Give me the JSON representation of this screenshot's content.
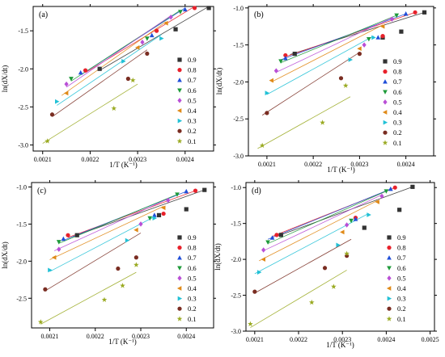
{
  "figure": {
    "title": ""
  },
  "chart_data": [
    {
      "type": "scatter",
      "panel_label": "(a)",
      "xlabel": "1/T (K⁻¹)",
      "ylabel": "ln(dX/dt)",
      "xlim": [
        0.00208,
        0.00246
      ],
      "ylim": [
        -3.08,
        -1.18
      ],
      "xticks": [
        "0.0021",
        "0.0022",
        "0.0023",
        "0.0024"
      ],
      "xtick_values": [
        0.0021,
        0.0022,
        0.0023,
        0.0024
      ],
      "yticks": [
        "-3.0",
        "-2.5",
        "-2.0",
        "-1.5"
      ],
      "ytick_values": [
        -3.0,
        -2.5,
        -2.0,
        -1.5
      ],
      "legend": {
        "position": "right"
      },
      "series": [
        {
          "name": "0.9",
          "color": "#333333",
          "marker": "square",
          "x": [
            0.00222,
            0.00238,
            0.00245
          ],
          "y": [
            -2.0,
            -1.48,
            -1.2
          ],
          "fit": {
            "x": [
              0.00222,
              0.00245
            ],
            "y": [
              -2.02,
              -1.18
            ]
          }
        },
        {
          "name": "0.8",
          "color": "#e8212b",
          "marker": "circle",
          "x": [
            0.00219,
            0.00234,
            0.00242
          ],
          "y": [
            -2.02,
            -1.5,
            -1.2
          ],
          "fit": {
            "x": [
              0.00219,
              0.00242
            ],
            "y": [
              -2.05,
              -1.18
            ]
          }
        },
        {
          "name": "0.7",
          "color": "#1f4ed8",
          "marker": "triangle-up",
          "x": [
            0.00218,
            0.00233,
            0.0024
          ],
          "y": [
            -2.05,
            -1.56,
            -1.22
          ],
          "fit": {
            "x": [
              0.00218,
              0.0024
            ],
            "y": [
              -2.08,
              -1.2
            ]
          }
        },
        {
          "name": "0.6",
          "color": "#1e9a3a",
          "marker": "triangle-down",
          "x": [
            0.00216,
            0.00232,
            0.00239
          ],
          "y": [
            -2.13,
            -1.6,
            -1.25
          ],
          "fit": {
            "x": [
              0.00216,
              0.00239
            ],
            "y": [
              -2.16,
              -1.23
            ]
          }
        },
        {
          "name": "0.5",
          "color": "#b94fd6",
          "marker": "diamond",
          "x": [
            0.00215,
            0.00231,
            0.00237
          ],
          "y": [
            -2.2,
            -1.65,
            -1.32
          ],
          "fit": {
            "x": [
              0.00215,
              0.00237
            ],
            "y": [
              -2.24,
              -1.3
            ]
          }
        },
        {
          "name": "0.4",
          "color": "#e08a18",
          "marker": "triangle-left",
          "x": [
            0.00215,
            0.0023,
            0.00236
          ],
          "y": [
            -2.32,
            -1.72,
            -1.4
          ],
          "fit": {
            "x": [
              0.00214,
              0.00236
            ],
            "y": [
              -2.35,
              -1.38
            ]
          }
        },
        {
          "name": "0.3",
          "color": "#22c1d6",
          "marker": "triangle-right",
          "x": [
            0.00213,
            0.00227,
            0.00235
          ],
          "y": [
            -2.43,
            -1.9,
            -1.6
          ],
          "fit": {
            "x": [
              0.00213,
              0.00235
            ],
            "y": [
              -2.48,
              -1.55
            ]
          }
        },
        {
          "name": "0.2",
          "color": "#7a2d22",
          "marker": "circle",
          "x": [
            0.00212,
            0.00228,
            0.00232
          ],
          "y": [
            -2.6,
            -2.13,
            -1.8
          ],
          "fit": {
            "x": [
              0.00212,
              0.00232
            ],
            "y": [
              -2.63,
              -1.75
            ]
          }
        },
        {
          "name": "0.1",
          "color": "#9aaa22",
          "marker": "star",
          "x": [
            0.00211,
            0.00225,
            0.00229
          ],
          "y": [
            -2.95,
            -2.52,
            -2.15
          ],
          "fit": {
            "x": [
              0.0021,
              0.0023
            ],
            "y": [
              -2.98,
              -2.2
            ]
          }
        }
      ]
    },
    {
      "type": "scatter",
      "panel_label": "(b)",
      "xlabel": "1/T (K⁻¹)",
      "ylabel": "ln(dX/dt)",
      "xlim": [
        0.00206,
        0.00246
      ],
      "ylim": [
        -3.0,
        -0.98
      ],
      "xticks": [
        "0.0021",
        "0.0022",
        "0.0023",
        "0.0024"
      ],
      "xtick_values": [
        0.0021,
        0.0022,
        0.0023,
        0.0024
      ],
      "yticks": [
        "-3.0",
        "-2.5",
        "-2.0",
        "-1.5",
        "-1.0"
      ],
      "ytick_values": [
        -3.0,
        -2.5,
        -2.0,
        -1.5,
        -1.0
      ],
      "legend": {
        "position": "right"
      },
      "series": [
        {
          "name": "0.9",
          "color": "#333333",
          "marker": "square",
          "x": [
            0.00216,
            0.00235,
            0.00239,
            0.00244
          ],
          "y": [
            -1.62,
            -1.4,
            -1.32,
            -1.06
          ],
          "fit": {
            "x": [
              0.00215,
              0.00244
            ],
            "y": [
              -1.63,
              -1.06
            ]
          }
        },
        {
          "name": "0.8",
          "color": "#e8212b",
          "marker": "circle",
          "x": [
            0.00214,
            0.00235,
            0.00242
          ],
          "y": [
            -1.64,
            -1.38,
            -1.06
          ],
          "fit": {
            "x": [
              0.00214,
              0.00242
            ],
            "y": [
              -1.66,
              -1.06
            ]
          }
        },
        {
          "name": "0.7",
          "color": "#1f4ed8",
          "marker": "triangle-up",
          "x": [
            0.00214,
            0.00234,
            0.0024
          ],
          "y": [
            -1.68,
            -1.4,
            -1.08
          ],
          "fit": {
            "x": [
              0.00213,
              0.0024
            ],
            "y": [
              -1.7,
              -1.08
            ]
          }
        },
        {
          "name": "0.6",
          "color": "#1e9a3a",
          "marker": "triangle-down",
          "x": [
            0.00213,
            0.00232,
            0.00238
          ],
          "y": [
            -1.72,
            -1.42,
            -1.1
          ],
          "fit": {
            "x": [
              0.00213,
              0.00238
            ],
            "y": [
              -1.74,
              -1.1
            ]
          }
        },
        {
          "name": "0.5",
          "color": "#b94fd6",
          "marker": "diamond",
          "x": [
            0.00212,
            0.00231,
            0.00237
          ],
          "y": [
            -1.85,
            -1.5,
            -1.15
          ],
          "fit": {
            "x": [
              0.00212,
              0.00237
            ],
            "y": [
              -1.87,
              -1.13
            ]
          }
        },
        {
          "name": "0.4",
          "color": "#e08a18",
          "marker": "triangle-left",
          "x": [
            0.00211,
            0.0023,
            0.00235
          ],
          "y": [
            -1.98,
            -1.55,
            -1.25
          ],
          "fit": {
            "x": [
              0.00211,
              0.00235
            ],
            "y": [
              -2.0,
              -1.23
            ]
          }
        },
        {
          "name": "0.3",
          "color": "#22c1d6",
          "marker": "triangle-right",
          "x": [
            0.0021,
            0.00228,
            0.00233
          ],
          "y": [
            -2.15,
            -1.7,
            -1.4
          ],
          "fit": {
            "x": [
              0.0021,
              0.00233
            ],
            "y": [
              -2.17,
              -1.38
            ]
          }
        },
        {
          "name": "0.2",
          "color": "#7a2d22",
          "marker": "circle",
          "x": [
            0.0021,
            0.00226,
            0.0023
          ],
          "y": [
            -2.42,
            -1.95,
            -1.62
          ],
          "fit": {
            "x": [
              0.00209,
              0.0023
            ],
            "y": [
              -2.45,
              -1.6
            ]
          }
        },
        {
          "name": "0.1",
          "color": "#9aaa22",
          "marker": "star",
          "x": [
            0.00209,
            0.00222,
            0.00227
          ],
          "y": [
            -2.86,
            -2.55,
            -2.05
          ],
          "fit": {
            "x": [
              0.00208,
              0.00228
            ],
            "y": [
              -2.9,
              -2.2
            ]
          }
        }
      ]
    },
    {
      "type": "scatter",
      "panel_label": "(c)",
      "xlabel": "1/T (K⁻¹)",
      "ylabel": "ln(dX/dt)",
      "xlim": [
        0.00206,
        0.00246
      ],
      "ylim": [
        -2.9,
        -0.94
      ],
      "xticks": [
        "0.0021",
        "0.0022",
        "0.0023",
        "0.0024"
      ],
      "xtick_values": [
        0.0021,
        0.0022,
        0.0023,
        0.0024
      ],
      "yticks": [
        "-2.5",
        "-2.0",
        "-1.5",
        "-1.0"
      ],
      "ytick_values": [
        -2.5,
        -2.0,
        -1.5,
        -1.0
      ],
      "legend": {
        "position": "right"
      },
      "series": [
        {
          "name": "0.9",
          "color": "#333333",
          "marker": "square",
          "x": [
            0.00216,
            0.00234,
            0.0024,
            0.00244
          ],
          "y": [
            -1.65,
            -1.38,
            -1.3,
            -1.04
          ],
          "fit": {
            "x": [
              0.00215,
              0.00244
            ],
            "y": [
              -1.67,
              -1.04
            ]
          }
        },
        {
          "name": "0.8",
          "color": "#e8212b",
          "marker": "circle",
          "x": [
            0.00214,
            0.00235,
            0.00242
          ],
          "y": [
            -1.65,
            -1.36,
            -1.05
          ],
          "fit": {
            "x": [
              0.00214,
              0.00242
            ],
            "y": [
              -1.68,
              -1.05
            ]
          }
        },
        {
          "name": "0.7",
          "color": "#1f4ed8",
          "marker": "triangle-up",
          "x": [
            0.00213,
            0.00233,
            0.0024
          ],
          "y": [
            -1.7,
            -1.38,
            -1.06
          ],
          "fit": {
            "x": [
              0.00213,
              0.0024
            ],
            "y": [
              -1.72,
              -1.06
            ]
          }
        },
        {
          "name": "0.6",
          "color": "#1e9a3a",
          "marker": "triangle-down",
          "x": [
            0.00212,
            0.00232,
            0.00238
          ],
          "y": [
            -1.74,
            -1.42,
            -1.1
          ],
          "fit": {
            "x": [
              0.00212,
              0.00238
            ],
            "y": [
              -1.76,
              -1.1
            ]
          }
        },
        {
          "name": "0.5",
          "color": "#b94fd6",
          "marker": "diamond",
          "x": [
            0.00212,
            0.0023,
            0.00236
          ],
          "y": [
            -1.84,
            -1.5,
            -1.18
          ],
          "fit": {
            "x": [
              0.00211,
              0.00236
            ],
            "y": [
              -1.86,
              -1.16
            ]
          }
        },
        {
          "name": "0.4",
          "color": "#e08a18",
          "marker": "triangle-left",
          "x": [
            0.00211,
            0.00229,
            0.00235
          ],
          "y": [
            -1.95,
            -1.58,
            -1.28
          ],
          "fit": {
            "x": [
              0.0021,
              0.00235
            ],
            "y": [
              -1.98,
              -1.26
            ]
          }
        },
        {
          "name": "0.3",
          "color": "#22c1d6",
          "marker": "triangle-right",
          "x": [
            0.0021,
            0.00227,
            0.00233
          ],
          "y": [
            -2.12,
            -1.72,
            -1.42
          ],
          "fit": {
            "x": [
              0.0021,
              0.00233
            ],
            "y": [
              -2.14,
              -1.4
            ]
          }
        },
        {
          "name": "0.2",
          "color": "#7a2d22",
          "marker": "circle",
          "x": [
            0.00209,
            0.00225,
            0.00229
          ],
          "y": [
            -2.38,
            -2.1,
            -1.95
          ],
          "fit": {
            "x": [
              0.00209,
              0.0023
            ],
            "y": [
              -2.4,
              -1.62
            ]
          }
        },
        {
          "name": "0.1",
          "color": "#9aaa22",
          "marker": "star",
          "x": [
            0.00208,
            0.00222,
            0.00226,
            0.00229
          ],
          "y": [
            -2.82,
            -2.52,
            -2.33,
            -2.05
          ],
          "fit": {
            "x": [
              0.00208,
              0.00229
            ],
            "y": [
              -2.85,
              -2.15
            ]
          }
        }
      ]
    },
    {
      "type": "scatter",
      "panel_label": "(d)",
      "xlabel": "1/T (K⁻¹)",
      "ylabel": "ln(dX/dt)",
      "xlim": [
        0.00208,
        0.00251
      ],
      "ylim": [
        -3.0,
        -0.93
      ],
      "xticks": [
        "0.0021",
        "0.0022",
        "0.0023",
        "0.0024",
        "0.0025"
      ],
      "xtick_values": [
        0.0021,
        0.0022,
        0.0023,
        0.0024,
        0.0025
      ],
      "yticks": [
        "-3.0",
        "-2.5",
        "-2.0",
        "-1.5",
        "-1.0"
      ],
      "ytick_values": [
        -3.0,
        -2.5,
        -2.0,
        -1.5,
        -1.0
      ],
      "legend": {
        "position": "right"
      },
      "series": [
        {
          "name": "0.9",
          "color": "#333333",
          "marker": "square",
          "x": [
            0.00216,
            0.00235,
            0.00243,
            0.00246
          ],
          "y": [
            -1.66,
            -1.56,
            -1.31,
            -0.99
          ],
          "fit": {
            "x": [
              0.00215,
              0.00246
            ],
            "y": [
              -1.68,
              -0.99
            ]
          }
        },
        {
          "name": "0.8",
          "color": "#e8212b",
          "marker": "circle",
          "x": [
            0.00215,
            0.00233,
            0.00242
          ],
          "y": [
            -1.66,
            -1.42,
            -1.0
          ],
          "fit": {
            "x": [
              0.00214,
              0.00242
            ],
            "y": [
              -1.68,
              -1.0
            ]
          }
        },
        {
          "name": "0.7",
          "color": "#1f4ed8",
          "marker": "triangle-up",
          "x": [
            0.00214,
            0.00233,
            0.00241
          ],
          "y": [
            -1.7,
            -1.44,
            -1.02
          ],
          "fit": {
            "x": [
              0.00213,
              0.00241
            ],
            "y": [
              -1.72,
              -1.02
            ]
          }
        },
        {
          "name": "0.6",
          "color": "#1e9a3a",
          "marker": "triangle-down",
          "x": [
            0.00213,
            0.00232,
            0.0024
          ],
          "y": [
            -1.76,
            -1.46,
            -1.05
          ],
          "fit": {
            "x": [
              0.00213,
              0.0024
            ],
            "y": [
              -1.78,
              -1.05
            ]
          }
        },
        {
          "name": "0.5",
          "color": "#b94fd6",
          "marker": "diamond",
          "x": [
            0.00212,
            0.00231,
            0.00239
          ],
          "y": [
            -1.87,
            -1.52,
            -1.12
          ],
          "fit": {
            "x": [
              0.00212,
              0.00239
            ],
            "y": [
              -1.88,
              -1.1
            ]
          }
        },
        {
          "name": "0.4",
          "color": "#e08a18",
          "marker": "triangle-left",
          "x": [
            0.00212,
            0.0023,
            0.00238
          ],
          "y": [
            -2.0,
            -1.62,
            -1.2
          ],
          "fit": {
            "x": [
              0.00211,
              0.00238
            ],
            "y": [
              -2.02,
              -1.18
            ]
          }
        },
        {
          "name": "0.3",
          "color": "#22c1d6",
          "marker": "triangle-right",
          "x": [
            0.00211,
            0.00229,
            0.00236
          ],
          "y": [
            -2.18,
            -1.8,
            -1.38
          ],
          "fit": {
            "x": [
              0.0021,
              0.00236
            ],
            "y": [
              -2.2,
              -1.36
            ]
          }
        },
        {
          "name": "0.2",
          "color": "#7a2d22",
          "marker": "circle",
          "x": [
            0.0021,
            0.00226,
            0.00231
          ],
          "y": [
            -2.45,
            -2.12,
            -1.95
          ],
          "fit": {
            "x": [
              0.0021,
              0.00232
            ],
            "y": [
              -2.47,
              -1.72
            ]
          }
        },
        {
          "name": "0.1",
          "color": "#9aaa22",
          "marker": "star",
          "x": [
            0.00209,
            0.00223,
            0.00228,
            0.00231
          ],
          "y": [
            -2.9,
            -2.6,
            -2.38,
            -1.92
          ],
          "fit": {
            "x": [
              0.00209,
              0.00231
            ],
            "y": [
              -2.95,
              -2.15
            ]
          }
        }
      ]
    }
  ]
}
